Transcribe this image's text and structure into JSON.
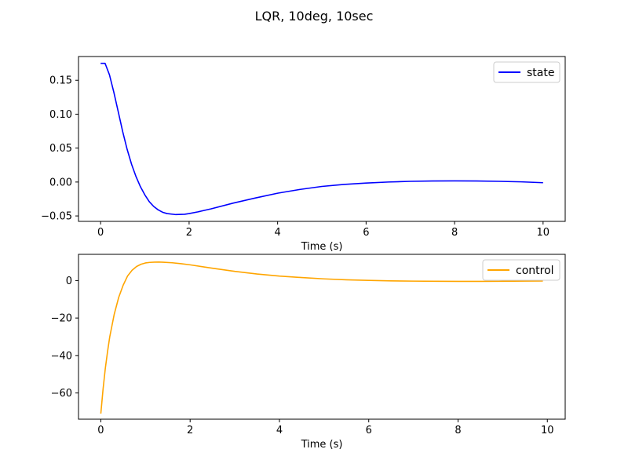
{
  "figure": {
    "title": "LQR, 10deg, 10sec"
  },
  "chart_data": [
    {
      "type": "line",
      "xlabel": "Time (s)",
      "ylabel": "",
      "xlim": [
        -0.5,
        10.5
      ],
      "ylim": [
        -0.058,
        0.185
      ],
      "xticks": [
        0,
        2,
        4,
        6,
        8,
        10
      ],
      "xtick_labels": [
        "0",
        "2",
        "4",
        "6",
        "8",
        "10"
      ],
      "yticks": [
        0.15,
        0.1,
        0.05,
        0.0,
        -0.05
      ],
      "ytick_labels": [
        "0.15",
        "0.10",
        "0.05",
        "0.00",
        "−0.05"
      ],
      "legend_position": "top-right",
      "grid": false,
      "series": [
        {
          "name": "state",
          "color": "#0000ff",
          "x": [
            0,
            0.1,
            0.2,
            0.3,
            0.4,
            0.5,
            0.6,
            0.7,
            0.8,
            0.9,
            1.0,
            1.1,
            1.2,
            1.3,
            1.4,
            1.5,
            1.7,
            1.9,
            2.0,
            2.2,
            2.5,
            3.0,
            3.5,
            4.0,
            4.5,
            5.0,
            5.5,
            6.0,
            6.5,
            7.0,
            7.5,
            8.0,
            8.5,
            9.0,
            9.5,
            10.0
          ],
          "y": [
            0.175,
            0.175,
            0.158,
            0.132,
            0.103,
            0.074,
            0.048,
            0.026,
            0.008,
            -0.007,
            -0.019,
            -0.029,
            -0.036,
            -0.041,
            -0.0445,
            -0.0465,
            -0.048,
            -0.0475,
            -0.0465,
            -0.044,
            -0.0395,
            -0.031,
            -0.0235,
            -0.0165,
            -0.011,
            -0.0065,
            -0.0035,
            -0.0015,
            0.0,
            0.001,
            0.0015,
            0.0017,
            0.0015,
            0.001,
            0.0003,
            -0.001
          ]
        }
      ]
    },
    {
      "type": "line",
      "xlabel": "Time (s)",
      "ylabel": "",
      "xlim": [
        -0.5,
        10.4
      ],
      "ylim": [
        -74,
        14
      ],
      "xticks": [
        0,
        2,
        4,
        6,
        8,
        10
      ],
      "xtick_labels": [
        "0",
        "2",
        "4",
        "6",
        "8",
        "10"
      ],
      "yticks": [
        0,
        -20,
        -40,
        -60
      ],
      "ytick_labels": [
        "0",
        "−20",
        "−40",
        "−60"
      ],
      "legend_position": "top-right",
      "grid": false,
      "series": [
        {
          "name": "control",
          "color": "#ffa500",
          "x": [
            0,
            0.05,
            0.1,
            0.15,
            0.2,
            0.3,
            0.4,
            0.5,
            0.6,
            0.7,
            0.8,
            0.9,
            1.0,
            1.1,
            1.2,
            1.3,
            1.4,
            1.6,
            1.8,
            2.0,
            2.5,
            3.0,
            3.5,
            4.0,
            4.5,
            5.0,
            5.5,
            6.0,
            6.5,
            7.0,
            7.5,
            8.0,
            8.5,
            9.0,
            9.5,
            9.9
          ],
          "y": [
            -71,
            -58,
            -47,
            -38,
            -30,
            -18,
            -9,
            -2.5,
            2.5,
            5.5,
            7.5,
            8.7,
            9.4,
            9.7,
            9.85,
            9.9,
            9.8,
            9.5,
            9.0,
            8.4,
            6.6,
            4.9,
            3.5,
            2.4,
            1.6,
            0.9,
            0.4,
            0.1,
            -0.15,
            -0.3,
            -0.4,
            -0.45,
            -0.45,
            -0.4,
            -0.3,
            -0.25
          ]
        }
      ]
    }
  ]
}
